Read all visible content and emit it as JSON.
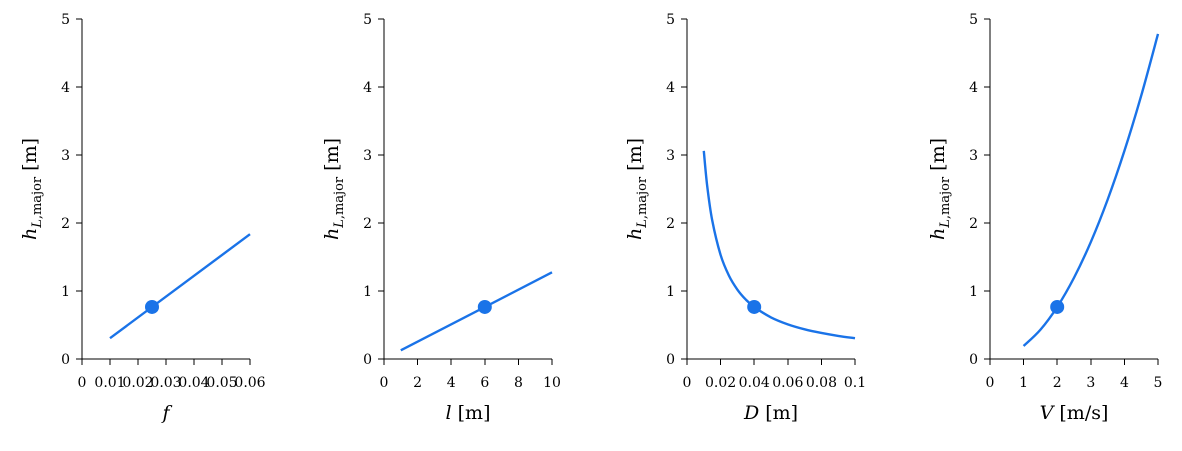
{
  "chart_data": [
    {
      "type": "line",
      "xlabel": "f",
      "ylabel": "h_{L,major} [m]",
      "xlim": [
        0,
        0.06
      ],
      "ylim": [
        0,
        5
      ],
      "xticks": [
        "0",
        "0.01",
        "0.02",
        "0.03",
        "0.04",
        "0.05",
        "0.06"
      ],
      "yticks": [
        "0",
        "1",
        "2",
        "3",
        "4",
        "5"
      ],
      "series": [
        {
          "x": [
            0.01,
            0.06
          ],
          "y": [
            0.306,
            1.835
          ]
        }
      ],
      "highlight_point": {
        "x": 0.025,
        "y": 0.765
      },
      "color": "#1a73e8",
      "grid": false
    },
    {
      "type": "line",
      "xlabel": "l [m]",
      "ylabel": "h_{L,major} [m]",
      "xlim": [
        0,
        10
      ],
      "ylim": [
        0,
        5
      ],
      "xticks": [
        "0",
        "2",
        "4",
        "6",
        "8",
        "10"
      ],
      "yticks": [
        "0",
        "1",
        "2",
        "3",
        "4",
        "5"
      ],
      "series": [
        {
          "x": [
            1,
            10
          ],
          "y": [
            0.127,
            1.274
          ]
        }
      ],
      "highlight_point": {
        "x": 6,
        "y": 0.765
      },
      "color": "#1a73e8",
      "grid": false
    },
    {
      "type": "line",
      "xlabel": "D [m]",
      "ylabel": "h_{L,major} [m]",
      "xlim": [
        0,
        0.1
      ],
      "ylim": [
        0,
        5
      ],
      "xticks": [
        "0",
        "0.02",
        "0.04",
        "0.06",
        "0.08",
        "0.1"
      ],
      "yticks": [
        "0",
        "1",
        "2",
        "3",
        "4",
        "5"
      ],
      "series": [
        {
          "x": [
            0.01,
            0.012,
            0.015,
            0.02,
            0.025,
            0.03,
            0.035,
            0.04,
            0.05,
            0.06,
            0.07,
            0.08,
            0.09,
            0.1
          ],
          "y": [
            3.06,
            2.55,
            2.04,
            1.53,
            1.224,
            1.02,
            0.874,
            0.765,
            0.612,
            0.51,
            0.437,
            0.383,
            0.34,
            0.306
          ]
        }
      ],
      "highlight_point": {
        "x": 0.04,
        "y": 0.765
      },
      "color": "#1a73e8",
      "grid": false
    },
    {
      "type": "line",
      "xlabel": "V [m/s]",
      "ylabel": "h_{L,major} [m]",
      "xlim": [
        0,
        5
      ],
      "ylim": [
        0,
        5
      ],
      "xticks": [
        "0",
        "1",
        "2",
        "3",
        "4",
        "5"
      ],
      "yticks": [
        "0",
        "1",
        "2",
        "3",
        "4",
        "5"
      ],
      "series": [
        {
          "x": [
            1,
            1.5,
            2,
            2.5,
            3,
            3.5,
            4,
            4.5,
            5
          ],
          "y": [
            0.191,
            0.43,
            0.765,
            1.195,
            1.72,
            2.342,
            3.06,
            3.872,
            4.78
          ]
        }
      ],
      "highlight_point": {
        "x": 2,
        "y": 0.765
      },
      "color": "#1a73e8",
      "grid": false
    }
  ]
}
